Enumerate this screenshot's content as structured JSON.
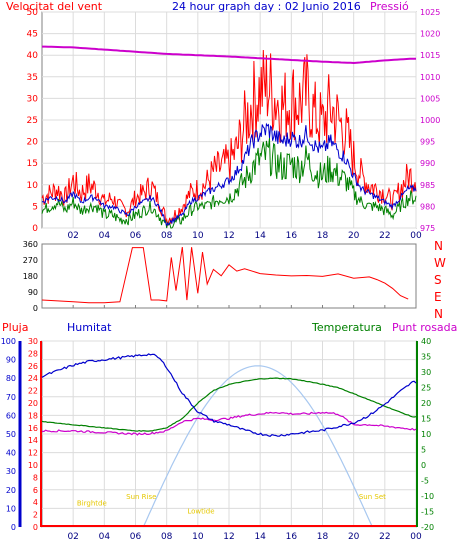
{
  "header": {
    "left": "Velocitat del vent",
    "center": "24 hour graph day : 02 Junio 2016",
    "right": "Pressió"
  },
  "legend2": {
    "pluja": "Pluja",
    "humitat": "Humitat",
    "temperatura": "Temperatura",
    "punt_rosada": "Punt rosada"
  },
  "dir_letters": [
    "N",
    "W",
    "S",
    "E",
    "N"
  ],
  "colors": {
    "red": "#ff0000",
    "blue": "#0000cc",
    "green": "#008000",
    "magenta": "#cc00cc",
    "sun": "#a8c8f0",
    "sunlabel": "#e6c800",
    "grid": "#dcdcdc",
    "frame": "#808080"
  },
  "chart_data": [
    {
      "type": "line",
      "title": "",
      "x_ticks": [
        "02",
        "04",
        "06",
        "08",
        "10",
        "12",
        "14",
        "16",
        "18",
        "20",
        "22",
        "00"
      ],
      "xlim": [
        0,
        24
      ],
      "y_left_ticks": [
        0,
        5,
        10,
        15,
        20,
        25,
        30,
        35,
        40,
        45,
        50
      ],
      "ylim_left": [
        0,
        50
      ],
      "y_right_ticks": [
        975,
        980,
        985,
        990,
        995,
        1000,
        1005,
        1010,
        1015,
        1020,
        1025
      ],
      "ylim_right": [
        975,
        1025
      ],
      "grid": true,
      "series": [
        {
          "key": "gust",
          "color": "#ff0000",
          "axis": "left",
          "x": [
            0,
            0.5,
            1,
            1.5,
            2,
            2.5,
            3,
            3.5,
            4,
            4.5,
            5,
            5.5,
            6,
            6.5,
            7,
            7.5,
            8,
            8.5,
            9,
            9.5,
            10,
            10.5,
            11,
            11.5,
            12,
            12.5,
            13,
            13.5,
            14,
            14.5,
            15,
            15.5,
            16,
            16.5,
            17,
            17.5,
            18,
            18.5,
            19,
            19.5,
            20,
            20.5,
            21,
            21.5,
            22,
            22.5,
            23,
            23.5
          ],
          "values": [
            7,
            8,
            9,
            7,
            11,
            8,
            10,
            9,
            6,
            7,
            5,
            4,
            7,
            8,
            10,
            6,
            2,
            3,
            5,
            8,
            9,
            10,
            13,
            14,
            15,
            18,
            24,
            29,
            32,
            33,
            30,
            28,
            30,
            29,
            31,
            26,
            24,
            28,
            25,
            22,
            16,
            12,
            10,
            9,
            8,
            6,
            9,
            12
          ]
        },
        {
          "key": "avg",
          "color": "#0000cc",
          "axis": "left",
          "x": [
            0,
            0.5,
            1,
            1.5,
            2,
            2.5,
            3,
            3.5,
            4,
            4.5,
            5,
            5.5,
            6,
            6.5,
            7,
            7.5,
            8,
            8.5,
            9,
            9.5,
            10,
            10.5,
            11,
            11.5,
            12,
            12.5,
            13,
            13.5,
            14,
            14.5,
            15,
            15.5,
            16,
            16.5,
            17,
            17.5,
            18,
            18.5,
            19,
            19.5,
            20,
            20.5,
            21,
            21.5,
            22,
            22.5,
            23,
            23.5
          ],
          "values": [
            6,
            7,
            7,
            6,
            8,
            6,
            7,
            7,
            5,
            5,
            4,
            3,
            5,
            6,
            7,
            5,
            1,
            2,
            3,
            6,
            7,
            8,
            9,
            10,
            11,
            13,
            16,
            20,
            22,
            23,
            21,
            20,
            21,
            20,
            22,
            19,
            18,
            20,
            18,
            16,
            12,
            9,
            8,
            7,
            6,
            5,
            7,
            9
          ]
        },
        {
          "key": "min",
          "color": "#008000",
          "axis": "left",
          "x": [
            0,
            0.5,
            1,
            1.5,
            2,
            2.5,
            3,
            3.5,
            4,
            4.5,
            5,
            5.5,
            6,
            6.5,
            7,
            7.5,
            8,
            8.5,
            9,
            9.5,
            10,
            10.5,
            11,
            11.5,
            12,
            12.5,
            13,
            13.5,
            14,
            14.5,
            15,
            15.5,
            16,
            16.5,
            17,
            17.5,
            18,
            18.5,
            19,
            19.5,
            20,
            20.5,
            21,
            21.5,
            22,
            22.5,
            23,
            23.5
          ],
          "values": [
            4,
            5,
            6,
            4,
            6,
            4,
            5,
            5,
            3,
            3,
            2,
            2,
            3,
            4,
            5,
            3,
            0,
            1,
            2,
            4,
            5,
            5,
            6,
            7,
            7,
            9,
            11,
            14,
            16,
            17,
            15,
            14,
            15,
            14,
            16,
            13,
            12,
            14,
            12,
            11,
            8,
            6,
            5,
            5,
            4,
            3,
            5,
            7
          ]
        },
        {
          "key": "pressure",
          "color": "#cc00cc",
          "axis": "right",
          "x": [
            0,
            2,
            4,
            6,
            8,
            10,
            12,
            14,
            16,
            18,
            20,
            22,
            23.8
          ],
          "values": [
            1017,
            1016.8,
            1016.3,
            1015.8,
            1015.3,
            1015,
            1014.7,
            1014.3,
            1013.9,
            1013.5,
            1013.2,
            1013.8,
            1014.2
          ]
        }
      ]
    },
    {
      "type": "scatter",
      "title": "",
      "x_ticks": [
        "02",
        "04",
        "06",
        "08",
        "10",
        "12",
        "14",
        "16",
        "18",
        "20",
        "22",
        "00"
      ],
      "xlim": [
        0,
        24
      ],
      "y_left_ticks": [
        0,
        90,
        180,
        270,
        360
      ],
      "ylim": [
        0,
        360
      ],
      "series": [
        {
          "key": "direction",
          "color": "#ff0000",
          "x": [
            0,
            1,
            2,
            3,
            4,
            5,
            5.8,
            6.2,
            6.5,
            7,
            7.5,
            8,
            8.3,
            8.6,
            9,
            9.3,
            9.6,
            10,
            10.3,
            10.6,
            11,
            11.5,
            12,
            12.5,
            13,
            14,
            15,
            16,
            17,
            18,
            19,
            20,
            21,
            21.5,
            22,
            22.5,
            23,
            23.5
          ],
          "values": [
            45,
            40,
            35,
            30,
            30,
            35,
            340,
            340,
            340,
            45,
            45,
            40,
            300,
            90,
            330,
            60,
            350,
            100,
            310,
            120,
            220,
            200,
            230,
            215,
            210,
            190,
            200,
            190,
            180,
            185,
            175,
            180,
            175,
            160,
            140,
            110,
            70,
            50
          ]
        }
      ]
    },
    {
      "type": "line",
      "title": "",
      "x_ticks": [
        "02",
        "04",
        "06",
        "08",
        "10",
        "12",
        "14",
        "16",
        "18",
        "20",
        "22",
        "00"
      ],
      "xlim": [
        0,
        24
      ],
      "y_left_outer_ticks": [
        0,
        10,
        20,
        30,
        40,
        50,
        60,
        70,
        80,
        90,
        100
      ],
      "ylim_humidity": [
        0,
        100
      ],
      "y_left_inner_ticks": [
        0,
        2,
        4,
        6,
        8,
        10,
        12,
        14,
        16,
        18,
        20,
        22,
        24,
        26,
        28,
        30
      ],
      "ylim_rain": [
        0,
        30
      ],
      "y_right_ticks": [
        -20,
        -15,
        -10,
        -5,
        0,
        5,
        10,
        15,
        20,
        25,
        30,
        35,
        40
      ],
      "ylim_temp": [
        -20,
        40
      ],
      "grid": true,
      "series": [
        {
          "key": "humidity",
          "color": "#0000cc",
          "axis": "humidity",
          "x": [
            0,
            1,
            2,
            3,
            4,
            5,
            6,
            7,
            7.5,
            8,
            9,
            10,
            11,
            12,
            13,
            14,
            15,
            16,
            17,
            18,
            19,
            20,
            21,
            22,
            23,
            23.8
          ],
          "values": [
            81,
            84,
            87,
            89,
            90,
            91,
            92,
            93,
            91,
            86,
            72,
            62,
            57,
            55,
            52,
            50,
            49,
            50,
            51,
            52,
            54,
            56,
            60,
            66,
            73,
            78
          ]
        },
        {
          "key": "temperature",
          "color": "#008000",
          "axis": "temp",
          "x": [
            0,
            1,
            2,
            3,
            4,
            5,
            6,
            7,
            8,
            9,
            10,
            11,
            12,
            13,
            14,
            15,
            16,
            17,
            18,
            19,
            20,
            21,
            22,
            23,
            23.8
          ],
          "values": [
            14,
            13.5,
            13,
            12.5,
            12,
            11.5,
            11,
            11,
            12,
            15,
            20,
            24,
            26,
            27,
            27.8,
            28,
            27.8,
            27,
            26,
            25,
            23,
            21,
            19,
            17,
            15.5
          ]
        },
        {
          "key": "dewpoint",
          "color": "#cc00cc",
          "axis": "temp",
          "x": [
            0,
            2,
            4,
            6,
            7,
            8,
            9,
            10,
            11,
            12,
            13,
            14,
            15,
            16,
            17,
            18,
            19,
            20,
            21,
            22,
            23,
            23.8
          ],
          "values": [
            11,
            11,
            10.5,
            10,
            10.2,
            11,
            14,
            15,
            14.5,
            15,
            16,
            16.5,
            17,
            16.5,
            16.5,
            17,
            16.5,
            13,
            13,
            12.5,
            12,
            11.5
          ]
        },
        {
          "key": "rain",
          "color": "#ff0000",
          "axis": "rain",
          "x": [
            0,
            24
          ],
          "values": [
            0,
            0
          ]
        }
      ],
      "solar": {
        "curve_label_texts": [
          "Sun Rise",
          "Sun Set",
          "Birghtde",
          "Lowtide"
        ],
        "sunrise": 6.5,
        "sunset": 21.2,
        "peak_hour": 14,
        "peak_level": 26
      }
    }
  ]
}
